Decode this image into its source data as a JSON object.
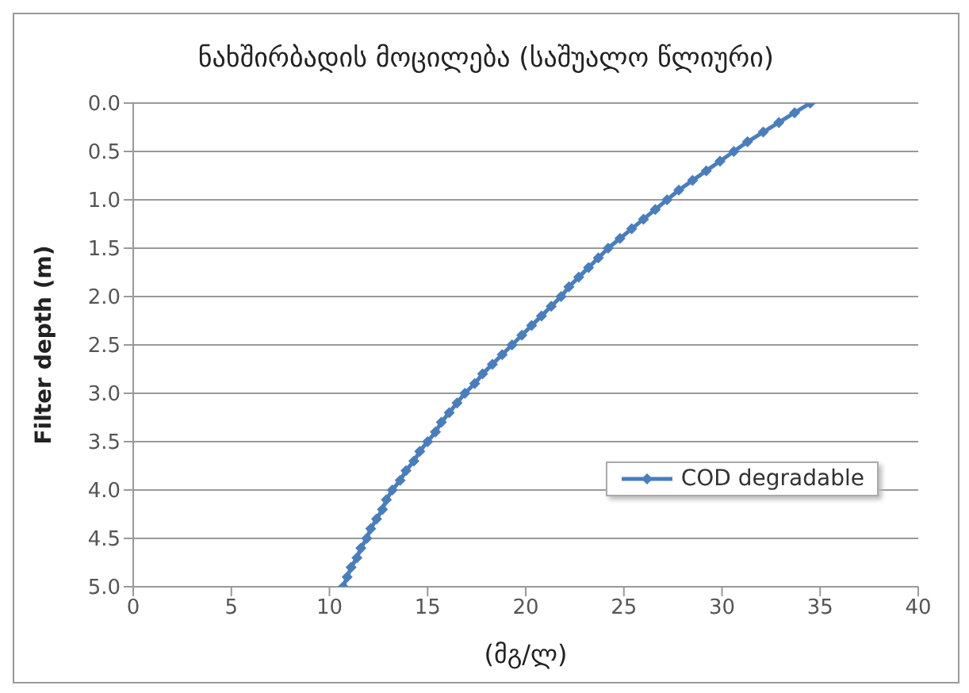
{
  "chart_data": {
    "type": "line",
    "title": "ნახშირბადის მოცილება (საშუალო წლიური)",
    "xlabel": "(მგ/ლ)",
    "ylabel": "Filter depth (m)",
    "x": [
      34.5,
      33.7,
      32.9,
      32.1,
      31.3,
      30.6,
      29.9,
      29.2,
      28.5,
      27.8,
      27.2,
      26.6,
      26.0,
      25.4,
      24.8,
      24.2,
      23.7,
      23.2,
      22.7,
      22.2,
      21.8,
      21.3,
      20.8,
      20.3,
      19.8,
      19.3,
      18.8,
      18.3,
      17.8,
      17.4,
      16.9,
      16.5,
      16.1,
      15.7,
      15.4,
      15.0,
      14.6,
      14.3,
      13.9,
      13.6,
      13.2,
      12.9,
      12.7,
      12.4,
      12.1,
      11.9,
      11.6,
      11.4,
      11.1,
      10.9,
      10.7
    ],
    "series": [
      {
        "name": "COD degradable",
        "color": "#4a7ebb",
        "values": [
          0,
          0.1,
          0.2,
          0.3,
          0.4,
          0.5,
          0.6,
          0.7,
          0.8,
          0.9,
          1.0,
          1.1,
          1.2,
          1.3,
          1.4,
          1.5,
          1.6,
          1.7,
          1.8,
          1.9,
          2.0,
          2.1,
          2.2,
          2.3,
          2.4,
          2.5,
          2.6,
          2.7,
          2.8,
          2.9,
          3.0,
          3.1,
          3.2,
          3.3,
          3.4,
          3.5,
          3.6,
          3.7,
          3.8,
          3.9,
          4.0,
          4.1,
          4.2,
          4.3,
          4.4,
          4.5,
          4.6,
          4.7,
          4.8,
          4.9,
          5.0
        ]
      }
    ],
    "xlim": [
      0,
      40
    ],
    "xticks": [
      0,
      5,
      10,
      15,
      20,
      25,
      30,
      35,
      40
    ],
    "ylim": [
      5,
      0
    ],
    "yticks": [
      {
        "value": 0,
        "label": "0.0"
      },
      {
        "value": 0.5,
        "label": "0.5"
      },
      {
        "value": 1,
        "label": "1.0"
      },
      {
        "value": 1.5,
        "label": "1.5"
      },
      {
        "value": 2,
        "label": "2.0"
      },
      {
        "value": 2.5,
        "label": "2.5"
      },
      {
        "value": 3,
        "label": "3.0"
      },
      {
        "value": 3.5,
        "label": "3.5"
      },
      {
        "value": 4,
        "label": "4.0"
      },
      {
        "value": 4.5,
        "label": "4.5"
      },
      {
        "value": 5,
        "label": "5.0"
      }
    ],
    "grid": "y",
    "legend": "right",
    "marker": "diamond",
    "line_style": "solid"
  }
}
